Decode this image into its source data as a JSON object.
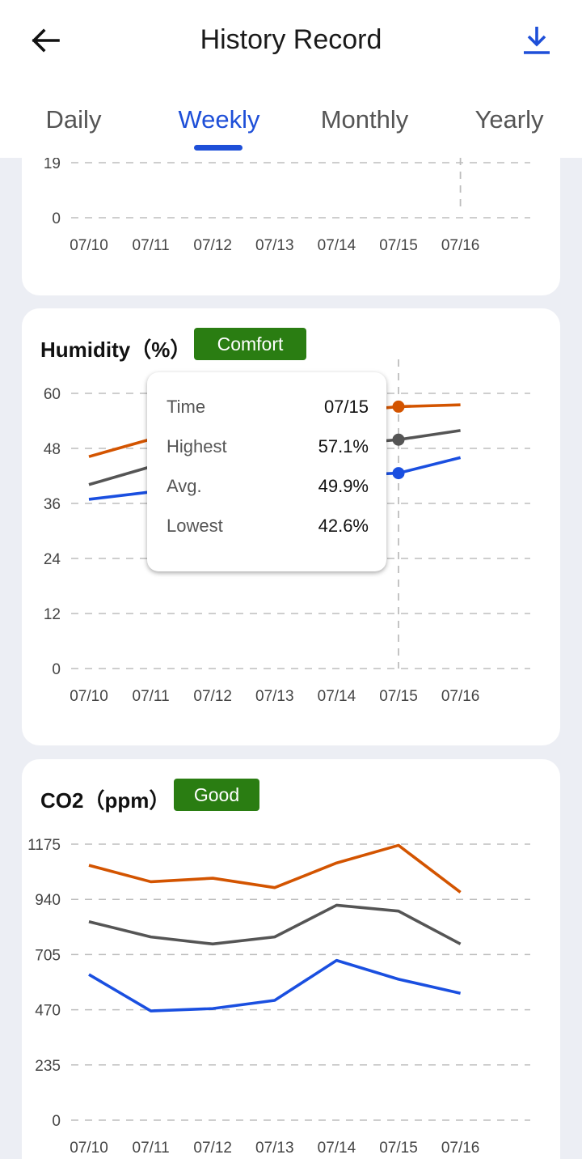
{
  "header": {
    "title": "History Record",
    "back_icon": "arrow-left-icon",
    "download_icon": "download-icon",
    "accent_color": "#1E4FD8"
  },
  "tabs": [
    {
      "label": "Daily",
      "active": false
    },
    {
      "label": "Weekly",
      "active": true
    },
    {
      "label": "Monthly",
      "active": false
    },
    {
      "label": "Yearly",
      "active": false
    }
  ],
  "cards": {
    "top": {},
    "humidity": {
      "title": "Humidity（%）",
      "badge": "Comfort",
      "badge_color": "#2A7D12"
    },
    "co2": {
      "title": "CO2（ppm）",
      "badge": "Good",
      "badge_color": "#2A7D12"
    }
  },
  "tooltip": {
    "rows": [
      {
        "label": "Time",
        "value": "07/15"
      },
      {
        "label": "Highest",
        "value": "57.1%"
      },
      {
        "label": "Avg.",
        "value": "49.9%"
      },
      {
        "label": "Lowest",
        "value": "42.6%"
      }
    ]
  },
  "chart_data": [
    {
      "type": "line",
      "categories": [
        "07/10",
        "07/11",
        "07/12",
        "07/13",
        "07/14",
        "07/15",
        "07/16"
      ],
      "yticks": [
        "0",
        "19"
      ],
      "ylim": [
        0,
        19
      ],
      "grid": true,
      "series": [],
      "highlight_category": "07/16"
    },
    {
      "type": "line",
      "title": "Humidity（%）",
      "categories": [
        "07/10",
        "07/11",
        "07/12",
        "07/13",
        "07/14",
        "07/15",
        "07/16"
      ],
      "yticks": [
        "0",
        "12",
        "24",
        "36",
        "48",
        "60"
      ],
      "ylim": [
        0,
        60
      ],
      "grid": true,
      "series": [
        {
          "color": "#D35400",
          "values": [
            46.2,
            50.0,
            52.5,
            54.5,
            55.9,
            57.1,
            57.5
          ]
        },
        {
          "color": "#555555",
          "values": [
            40.1,
            44.0,
            46.0,
            47.5,
            48.8,
            49.9,
            51.9
          ]
        },
        {
          "color": "#1A4FE0",
          "values": [
            36.9,
            38.5,
            40.0,
            41.0,
            42.0,
            42.6,
            46.0
          ]
        }
      ],
      "highlight_category": "07/15"
    },
    {
      "type": "line",
      "title": "CO2（ppm）",
      "categories": [
        "07/10",
        "07/11",
        "07/12",
        "07/13",
        "07/14",
        "07/15",
        "07/16"
      ],
      "yticks": [
        "0",
        "235",
        "470",
        "705",
        "940",
        "1175"
      ],
      "ylim": [
        0,
        1175
      ],
      "grid": true,
      "series": [
        {
          "color": "#D35400",
          "values": [
            1085,
            1015,
            1030,
            990,
            1095,
            1170,
            970
          ]
        },
        {
          "color": "#555555",
          "values": [
            845,
            780,
            750,
            780,
            915,
            890,
            750
          ]
        },
        {
          "color": "#1A4FE0",
          "values": [
            620,
            465,
            475,
            510,
            680,
            600,
            540
          ]
        }
      ]
    }
  ]
}
